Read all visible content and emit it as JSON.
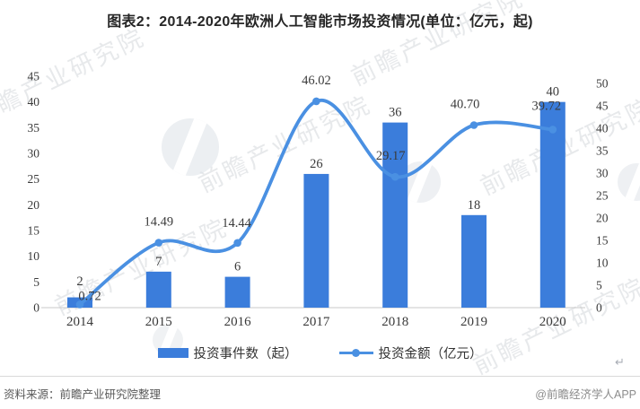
{
  "title": "图表2：2014-2020年欧洲人工智能市场投资情况(单位：亿元，起)",
  "chart_data": {
    "type": "bar",
    "subtype": "bar-line-combo",
    "title": "图表2：2014-2020年欧洲人工智能市场投资情况(单位：亿元，起)",
    "categories": [
      "2014",
      "2015",
      "2016",
      "2017",
      "2018",
      "2019",
      "2020"
    ],
    "series": [
      {
        "name": "投资事件数（起）",
        "type": "bar",
        "axis": "left",
        "values": [
          2,
          7,
          6,
          26,
          36,
          18,
          40
        ],
        "labels": [
          "2",
          "7",
          "6",
          "26",
          "36",
          "18",
          "40"
        ],
        "color": "#3b7ddb"
      },
      {
        "name": "投资金额（亿元）",
        "type": "line",
        "axis": "right",
        "values": [
          0.72,
          14.49,
          14.44,
          46.02,
          29.17,
          40.7,
          39.72
        ],
        "labels": [
          "0.72",
          "14.49",
          "14.44",
          "46.02",
          "29.17",
          "40.70",
          "39.72"
        ],
        "color": "#4a90e2"
      }
    ],
    "left_axis": {
      "min": 0,
      "max": 45,
      "step": 5
    },
    "right_axis": {
      "min": 0,
      "max": 50,
      "step": 5
    },
    "grid": false,
    "legend_position": "bottom",
    "axis_line_color": "#c9c9c9",
    "label_color": "#3a3a3a"
  },
  "legend": {
    "items": [
      {
        "label": "投资事件数（起）"
      },
      {
        "label": "投资金额（亿元）"
      }
    ]
  },
  "footer": {
    "source": "资料来源：前瞻产业研究院整理",
    "brand": "@前瞻经济学人APP",
    "return_mark": "↵"
  },
  "watermark": {
    "text": "前瞻产业研究院"
  }
}
